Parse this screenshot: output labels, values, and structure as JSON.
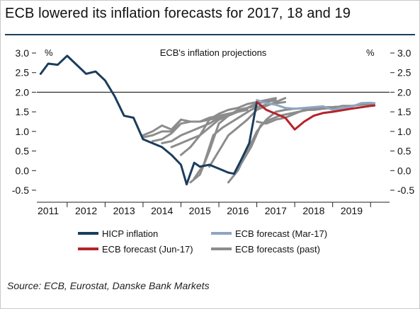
{
  "header": {
    "title": "ECB lowered its inflation forecasts for 2017, 18 and 19"
  },
  "footer": {
    "source": "Source: ECB, Eurostat, Danske Bank Markets"
  },
  "colors": {
    "hicp": "#1b3d5c",
    "mar17": "#8fa6c2",
    "jun17": "#b5232a",
    "past": "#8c8c8c",
    "axis": "#222222",
    "refline": "#000000"
  },
  "chart_data": {
    "type": "line",
    "title": "ECB's inflation projections",
    "xlabel": "",
    "ylabel_left": "%",
    "ylabel_right": "%",
    "xlim": [
      2010.7,
      2020.0
    ],
    "ylim": [
      -0.5,
      3.0
    ],
    "yticks": [
      {
        "v": 3.0,
        "label": "3.0"
      },
      {
        "v": 2.5,
        "label": "2.5"
      },
      {
        "v": 2.0,
        "label": "2.0"
      },
      {
        "v": 1.5,
        "label": "1.5"
      },
      {
        "v": 1.0,
        "label": "1.0"
      },
      {
        "v": 0.5,
        "label": "0.5"
      },
      {
        "v": 0.0,
        "label": "0.0"
      },
      {
        "v": -0.5,
        "label": "-0.5"
      }
    ],
    "xticks": [
      {
        "v": 2011.0,
        "label": "2011"
      },
      {
        "v": 2012.0,
        "label": "2012"
      },
      {
        "v": 2013.0,
        "label": "2013"
      },
      {
        "v": 2014.0,
        "label": "2014"
      },
      {
        "v": 2015.0,
        "label": "2015"
      },
      {
        "v": 2016.0,
        "label": "2016"
      },
      {
        "v": 2017.0,
        "label": "2017"
      },
      {
        "v": 2018.0,
        "label": "2018"
      },
      {
        "v": 2019.0,
        "label": "2019"
      }
    ],
    "reference_line": 2.0,
    "legend": [
      {
        "key": "hicp",
        "label": "HICP inflation"
      },
      {
        "key": "mar17",
        "label": "ECB forecast (Mar-17)"
      },
      {
        "key": "jun17",
        "label": "ECB forecast (Jun-17)"
      },
      {
        "key": "past",
        "label": "ECB forecasts (past)"
      }
    ],
    "series": [
      {
        "name": "HICP inflation",
        "key": "hicp",
        "points": [
          [
            2010.8,
            2.47
          ],
          [
            2011.0,
            2.73
          ],
          [
            2011.25,
            2.7
          ],
          [
            2011.5,
            2.93
          ],
          [
            2011.75,
            2.7
          ],
          [
            2012.0,
            2.47
          ],
          [
            2012.25,
            2.53
          ],
          [
            2012.5,
            2.3
          ],
          [
            2012.75,
            1.9
          ],
          [
            2013.0,
            1.4
          ],
          [
            2013.25,
            1.35
          ],
          [
            2013.5,
            0.8
          ],
          [
            2013.75,
            0.7
          ],
          [
            2014.0,
            0.6
          ],
          [
            2014.25,
            0.4
          ],
          [
            2014.5,
            0.15
          ],
          [
            2014.65,
            -0.35
          ],
          [
            2014.85,
            0.2
          ],
          [
            2015.0,
            0.1
          ],
          [
            2015.25,
            0.15
          ],
          [
            2015.5,
            0.05
          ],
          [
            2015.75,
            -0.05
          ],
          [
            2015.9,
            -0.08
          ],
          [
            2016.1,
            0.3
          ],
          [
            2016.3,
            0.7
          ],
          [
            2016.5,
            1.75
          ]
        ]
      },
      {
        "name": "ECB forecast (Mar-17)",
        "key": "mar17",
        "points": [
          [
            2016.5,
            1.8
          ],
          [
            2016.75,
            1.72
          ],
          [
            2017.0,
            1.68
          ],
          [
            2017.25,
            1.6
          ],
          [
            2017.5,
            1.58
          ],
          [
            2018.0,
            1.62
          ],
          [
            2018.25,
            1.64
          ],
          [
            2018.5,
            1.55
          ],
          [
            2019.0,
            1.63
          ],
          [
            2019.25,
            1.72
          ],
          [
            2019.5,
            1.73
          ],
          [
            2019.6,
            1.72
          ]
        ]
      },
      {
        "name": "ECB forecast (Jun-17)",
        "key": "jun17",
        "points": [
          [
            2016.5,
            1.75
          ],
          [
            2016.75,
            1.55
          ],
          [
            2017.0,
            1.45
          ],
          [
            2017.25,
            1.35
          ],
          [
            2017.5,
            1.05
          ],
          [
            2017.75,
            1.25
          ],
          [
            2018.0,
            1.4
          ],
          [
            2018.25,
            1.47
          ],
          [
            2018.5,
            1.5
          ],
          [
            2019.0,
            1.58
          ],
          [
            2019.5,
            1.65
          ],
          [
            2019.6,
            1.66
          ]
        ]
      }
    ],
    "past_forecasts": [
      [
        [
          2013.5,
          0.9
        ],
        [
          2013.75,
          1.0
        ],
        [
          2014.0,
          1.15
        ],
        [
          2014.25,
          1.05
        ],
        [
          2014.5,
          1.3
        ]
      ],
      [
        [
          2013.5,
          0.85
        ],
        [
          2013.75,
          0.9
        ],
        [
          2014.0,
          1.0
        ],
        [
          2014.25,
          1.0
        ],
        [
          2014.5,
          1.3
        ],
        [
          2014.75,
          1.25
        ],
        [
          2015.0,
          1.25
        ],
        [
          2015.25,
          1.3
        ],
        [
          2015.5,
          1.35
        ]
      ],
      [
        [
          2013.75,
          0.75
        ],
        [
          2014.0,
          0.8
        ],
        [
          2014.25,
          0.95
        ],
        [
          2014.5,
          1.2
        ],
        [
          2014.75,
          1.25
        ],
        [
          2015.0,
          1.25
        ],
        [
          2015.25,
          1.35
        ],
        [
          2015.5,
          1.4
        ],
        [
          2015.75,
          1.45
        ]
      ],
      [
        [
          2014.0,
          0.7
        ],
        [
          2014.25,
          0.75
        ],
        [
          2014.5,
          0.9
        ],
        [
          2014.75,
          1.0
        ],
        [
          2015.0,
          1.1
        ],
        [
          2015.25,
          1.2
        ],
        [
          2015.5,
          1.35
        ],
        [
          2015.75,
          1.45
        ],
        [
          2016.0,
          1.5
        ],
        [
          2016.25,
          1.55
        ]
      ],
      [
        [
          2014.25,
          0.6
        ],
        [
          2014.5,
          0.7
        ],
        [
          2014.75,
          0.8
        ],
        [
          2015.0,
          0.9
        ],
        [
          2015.25,
          1.1
        ],
        [
          2015.5,
          1.3
        ],
        [
          2015.75,
          1.4
        ],
        [
          2016.0,
          1.5
        ],
        [
          2016.25,
          1.6
        ],
        [
          2016.5,
          1.65
        ]
      ],
      [
        [
          2014.5,
          0.4
        ],
        [
          2014.75,
          0.6
        ],
        [
          2015.0,
          0.9
        ],
        [
          2015.25,
          1.3
        ],
        [
          2015.5,
          1.45
        ],
        [
          2015.75,
          1.55
        ],
        [
          2016.0,
          1.6
        ],
        [
          2016.25,
          1.7
        ],
        [
          2016.5,
          1.75
        ],
        [
          2016.75,
          1.8
        ],
        [
          2017.0,
          1.85
        ]
      ],
      [
        [
          2014.75,
          -0.3
        ],
        [
          2015.0,
          -0.1
        ],
        [
          2015.25,
          0.5
        ],
        [
          2015.5,
          1.2
        ],
        [
          2015.75,
          1.4
        ],
        [
          2016.0,
          1.55
        ],
        [
          2016.25,
          1.6
        ],
        [
          2016.5,
          1.72
        ],
        [
          2016.75,
          1.75
        ],
        [
          2017.0,
          1.8
        ]
      ],
      [
        [
          2014.85,
          -0.2
        ],
        [
          2015.1,
          0.15
        ],
        [
          2015.35,
          0.9
        ],
        [
          2015.6,
          1.1
        ],
        [
          2015.85,
          1.25
        ],
        [
          2016.1,
          1.4
        ],
        [
          2016.35,
          1.55
        ],
        [
          2016.6,
          1.65
        ],
        [
          2016.85,
          1.7
        ],
        [
          2017.25,
          1.75
        ]
      ],
      [
        [
          2015.25,
          0.1
        ],
        [
          2015.5,
          0.5
        ],
        [
          2015.75,
          0.9
        ],
        [
          2016.0,
          1.1
        ],
        [
          2016.25,
          1.3
        ],
        [
          2016.5,
          1.55
        ],
        [
          2016.75,
          1.65
        ],
        [
          2017.0,
          1.75
        ],
        [
          2017.25,
          1.85
        ]
      ],
      [
        [
          2015.75,
          -0.3
        ],
        [
          2016.0,
          0.0
        ],
        [
          2016.25,
          0.5
        ],
        [
          2016.5,
          1.0
        ],
        [
          2016.75,
          1.3
        ],
        [
          2017.0,
          1.5
        ],
        [
          2017.25,
          1.55
        ],
        [
          2017.5,
          1.58
        ],
        [
          2018.0,
          1.6
        ],
        [
          2018.25,
          1.62
        ],
        [
          2018.5,
          1.62
        ]
      ],
      [
        [
          2015.9,
          -0.1
        ],
        [
          2016.1,
          0.2
        ],
        [
          2016.35,
          0.6
        ],
        [
          2016.6,
          1.15
        ],
        [
          2016.85,
          1.3
        ],
        [
          2017.1,
          1.4
        ],
        [
          2017.35,
          1.45
        ],
        [
          2017.6,
          1.5
        ],
        [
          2017.85,
          1.55
        ],
        [
          2018.1,
          1.58
        ],
        [
          2018.35,
          1.6
        ],
        [
          2018.6,
          1.63
        ]
      ],
      [
        [
          2016.5,
          1.25
        ],
        [
          2016.75,
          1.2
        ],
        [
          2017.0,
          1.3
        ],
        [
          2017.25,
          1.35
        ],
        [
          2017.5,
          1.45
        ],
        [
          2017.75,
          1.55
        ],
        [
          2018.0,
          1.55
        ],
        [
          2018.25,
          1.58
        ],
        [
          2018.5,
          1.6
        ],
        [
          2018.75,
          1.65
        ],
        [
          2019.0,
          1.65
        ],
        [
          2019.25,
          1.68
        ],
        [
          2019.5,
          1.7
        ],
        [
          2019.6,
          1.7
        ]
      ]
    ]
  }
}
